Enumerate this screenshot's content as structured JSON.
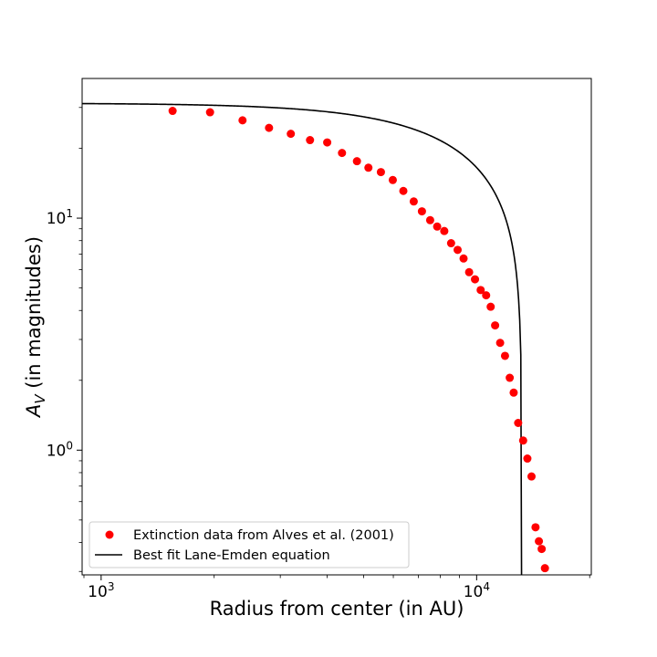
{
  "chart_data": {
    "type": "scatter",
    "xlabel": "Radius from center (in AU)",
    "ylabel_main": "A",
    "ylabel_sub": "V",
    "ylabel_rest": " (in magnitudes)",
    "xscale": "log",
    "yscale": "log",
    "xlim": [
      890,
      20200
    ],
    "ylim": [
      0.29,
      40
    ],
    "x_ticks": [
      {
        "value": 1000,
        "base": "10",
        "exp": "3"
      },
      {
        "value": 10000,
        "base": "10",
        "exp": "4"
      }
    ],
    "y_ticks": [
      {
        "value": 1,
        "base": "10",
        "exp": "0"
      },
      {
        "value": 10,
        "base": "10",
        "exp": "1"
      }
    ],
    "grid": false,
    "legend_position": "lower-left",
    "series": [
      {
        "name": "Extinction data from Alves et al. (2001)",
        "kind": "points",
        "color": "#ff0000",
        "points": [
          [
            1550,
            29.0
          ],
          [
            1950,
            28.6
          ],
          [
            2380,
            26.4
          ],
          [
            2800,
            24.5
          ],
          [
            3200,
            23.1
          ],
          [
            3600,
            21.7
          ],
          [
            4000,
            21.2
          ],
          [
            4380,
            19.1
          ],
          [
            4800,
            17.6
          ],
          [
            5150,
            16.5
          ],
          [
            5560,
            15.8
          ],
          [
            5980,
            14.6
          ],
          [
            6380,
            13.1
          ],
          [
            6800,
            11.8
          ],
          [
            7150,
            10.7
          ],
          [
            7520,
            9.8
          ],
          [
            7850,
            9.2
          ],
          [
            8200,
            8.8
          ],
          [
            8550,
            7.8
          ],
          [
            8900,
            7.3
          ],
          [
            9230,
            6.7
          ],
          [
            9550,
            5.85
          ],
          [
            9900,
            5.45
          ],
          [
            10250,
            4.9
          ],
          [
            10600,
            4.65
          ],
          [
            10900,
            4.15
          ],
          [
            11200,
            3.45
          ],
          [
            11550,
            2.9
          ],
          [
            11900,
            2.55
          ],
          [
            12250,
            2.05
          ],
          [
            12550,
            1.77
          ],
          [
            12900,
            1.31
          ],
          [
            13300,
            1.1
          ],
          [
            13650,
            0.92
          ],
          [
            14000,
            0.77
          ],
          [
            14350,
            0.465
          ],
          [
            14650,
            0.405
          ],
          [
            14900,
            0.375
          ],
          [
            15200,
            0.31
          ]
        ]
      },
      {
        "name": "Best fit Lane-Emden equation",
        "kind": "line",
        "color": "#000000",
        "a_center": 31.3,
        "r_edge": 13200,
        "r_scale": 6500
      }
    ]
  }
}
